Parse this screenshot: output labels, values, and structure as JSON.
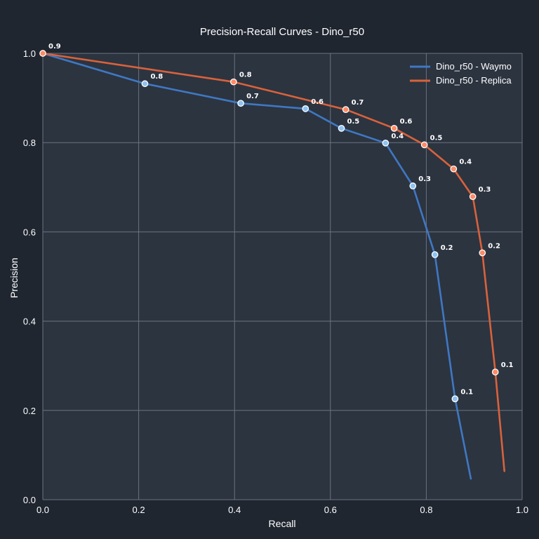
{
  "chart_data": {
    "type": "line",
    "title": "Precision-Recall Curves - Dino_r50",
    "xlabel": "Recall",
    "ylabel": "Precision",
    "xlim": [
      0,
      1
    ],
    "ylim": [
      0,
      1
    ],
    "xticks": [
      "0.0",
      "0.2",
      "0.4",
      "0.6",
      "0.8",
      "1.0"
    ],
    "yticks": [
      "0.0",
      "0.2",
      "0.4",
      "0.6",
      "0.8",
      "1.0"
    ],
    "grid": true,
    "legend_position": "top-right",
    "colors": {
      "background": "#1f2630",
      "plot_background": "#2c3440",
      "grid": "#6b7380",
      "text": "#ffffff"
    },
    "series": [
      {
        "name": "Dino_r50 - Waymo",
        "color": "#3f78c2",
        "marker_fill": "#8ec3f2",
        "line": [
          {
            "x": 0.0,
            "y": 1.0
          },
          {
            "x": 0.213,
            "y": 0.932
          },
          {
            "x": 0.413,
            "y": 0.888
          },
          {
            "x": 0.548,
            "y": 0.876
          },
          {
            "x": 0.623,
            "y": 0.832
          },
          {
            "x": 0.715,
            "y": 0.799
          },
          {
            "x": 0.772,
            "y": 0.703
          },
          {
            "x": 0.818,
            "y": 0.549
          },
          {
            "x": 0.86,
            "y": 0.226
          },
          {
            "x": 0.893,
            "y": 0.047
          }
        ],
        "points": [
          {
            "x": 0.213,
            "y": 0.932,
            "label": "0.8"
          },
          {
            "x": 0.413,
            "y": 0.888,
            "label": "0.7"
          },
          {
            "x": 0.548,
            "y": 0.876,
            "label": "0.6"
          },
          {
            "x": 0.623,
            "y": 0.832,
            "label": "0.5"
          },
          {
            "x": 0.715,
            "y": 0.799,
            "label": "0.4"
          },
          {
            "x": 0.772,
            "y": 0.703,
            "label": "0.3"
          },
          {
            "x": 0.818,
            "y": 0.549,
            "label": "0.2"
          },
          {
            "x": 0.86,
            "y": 0.226,
            "label": "0.1"
          }
        ]
      },
      {
        "name": "Dino_r50 - Replica",
        "color": "#d9623b",
        "marker_fill": "#ff8a66",
        "line": [
          {
            "x": 0.0,
            "y": 1.0
          },
          {
            "x": 0.398,
            "y": 0.936
          },
          {
            "x": 0.632,
            "y": 0.874
          },
          {
            "x": 0.733,
            "y": 0.832
          },
          {
            "x": 0.796,
            "y": 0.795
          },
          {
            "x": 0.857,
            "y": 0.741
          },
          {
            "x": 0.897,
            "y": 0.679
          },
          {
            "x": 0.917,
            "y": 0.553
          },
          {
            "x": 0.944,
            "y": 0.286
          },
          {
            "x": 0.963,
            "y": 0.064
          }
        ],
        "points": [
          {
            "x": 0.0,
            "y": 1.0,
            "label": "0.9"
          },
          {
            "x": 0.398,
            "y": 0.936,
            "label": "0.8"
          },
          {
            "x": 0.632,
            "y": 0.874,
            "label": "0.7"
          },
          {
            "x": 0.733,
            "y": 0.832,
            "label": "0.6"
          },
          {
            "x": 0.796,
            "y": 0.795,
            "label": "0.5"
          },
          {
            "x": 0.857,
            "y": 0.741,
            "label": "0.4"
          },
          {
            "x": 0.897,
            "y": 0.679,
            "label": "0.3"
          },
          {
            "x": 0.917,
            "y": 0.553,
            "label": "0.2"
          },
          {
            "x": 0.944,
            "y": 0.286,
            "label": "0.1"
          }
        ]
      }
    ]
  }
}
